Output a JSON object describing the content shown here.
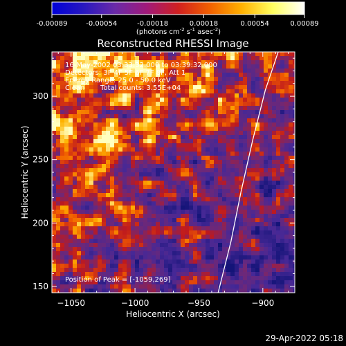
{
  "colorbar": {
    "ticks": [
      "-0.00089",
      "-0.00054",
      "-0.00018",
      "0.00018",
      "0.00054",
      "0.00089"
    ],
    "units_prefix": "(photons cm",
    "units_exp1": "-2",
    "units_mid": " s",
    "units_exp2": "-1",
    "units_mid2": " asec",
    "units_exp3": "-2",
    "units_suffix": ")",
    "gradient_colors": [
      "#0000d8",
      "#2818c0",
      "#6a2aa8",
      "#a01a7a",
      "#d02020",
      "#f26000",
      "#ffb000",
      "#ffff60",
      "#ffffff"
    ]
  },
  "title": "Reconstructed RHESSI Image",
  "info": {
    "line1": "16-May-2002 03:33:32.000 to 03:39:32.000",
    "line2": "Detectors: 3F 4F 5F 6F 7F 8F, Att 1",
    "line3": "Energy Range: 25.0 - 50.0 keV",
    "line4_a": "Clean",
    "line4_b": "Total counts: 3.55E+04",
    "peak": "Position of Peak = [-1059,269]"
  },
  "chart_data": {
    "type": "heatmap",
    "title": "Reconstructed RHESSI Image",
    "xlabel": "Heliocentric X (arcsec)",
    "ylabel": "Heliocentric Y (arcsec)",
    "xlim": [
      -1065,
      -875
    ],
    "ylim": [
      145,
      335
    ],
    "xticks": [
      -1050,
      -1000,
      -950,
      -900
    ],
    "yticks": [
      150,
      200,
      250,
      300
    ],
    "xtick_labels": [
      "−1050",
      "−1000",
      "−950",
      "−900"
    ],
    "ytick_labels": [
      "150",
      "200",
      "250",
      "300"
    ],
    "value_range": [
      -0.00089,
      0.00089
    ],
    "peak_position": [
      -1059,
      269
    ],
    "limb_curve": [
      [
        -935,
        145
      ],
      [
        -925,
        185
      ],
      [
        -917,
        225
      ],
      [
        -908,
        265
      ],
      [
        -898,
        305
      ],
      [
        -888,
        335
      ]
    ]
  },
  "timestamp": "29-Apr-2022 05:18"
}
